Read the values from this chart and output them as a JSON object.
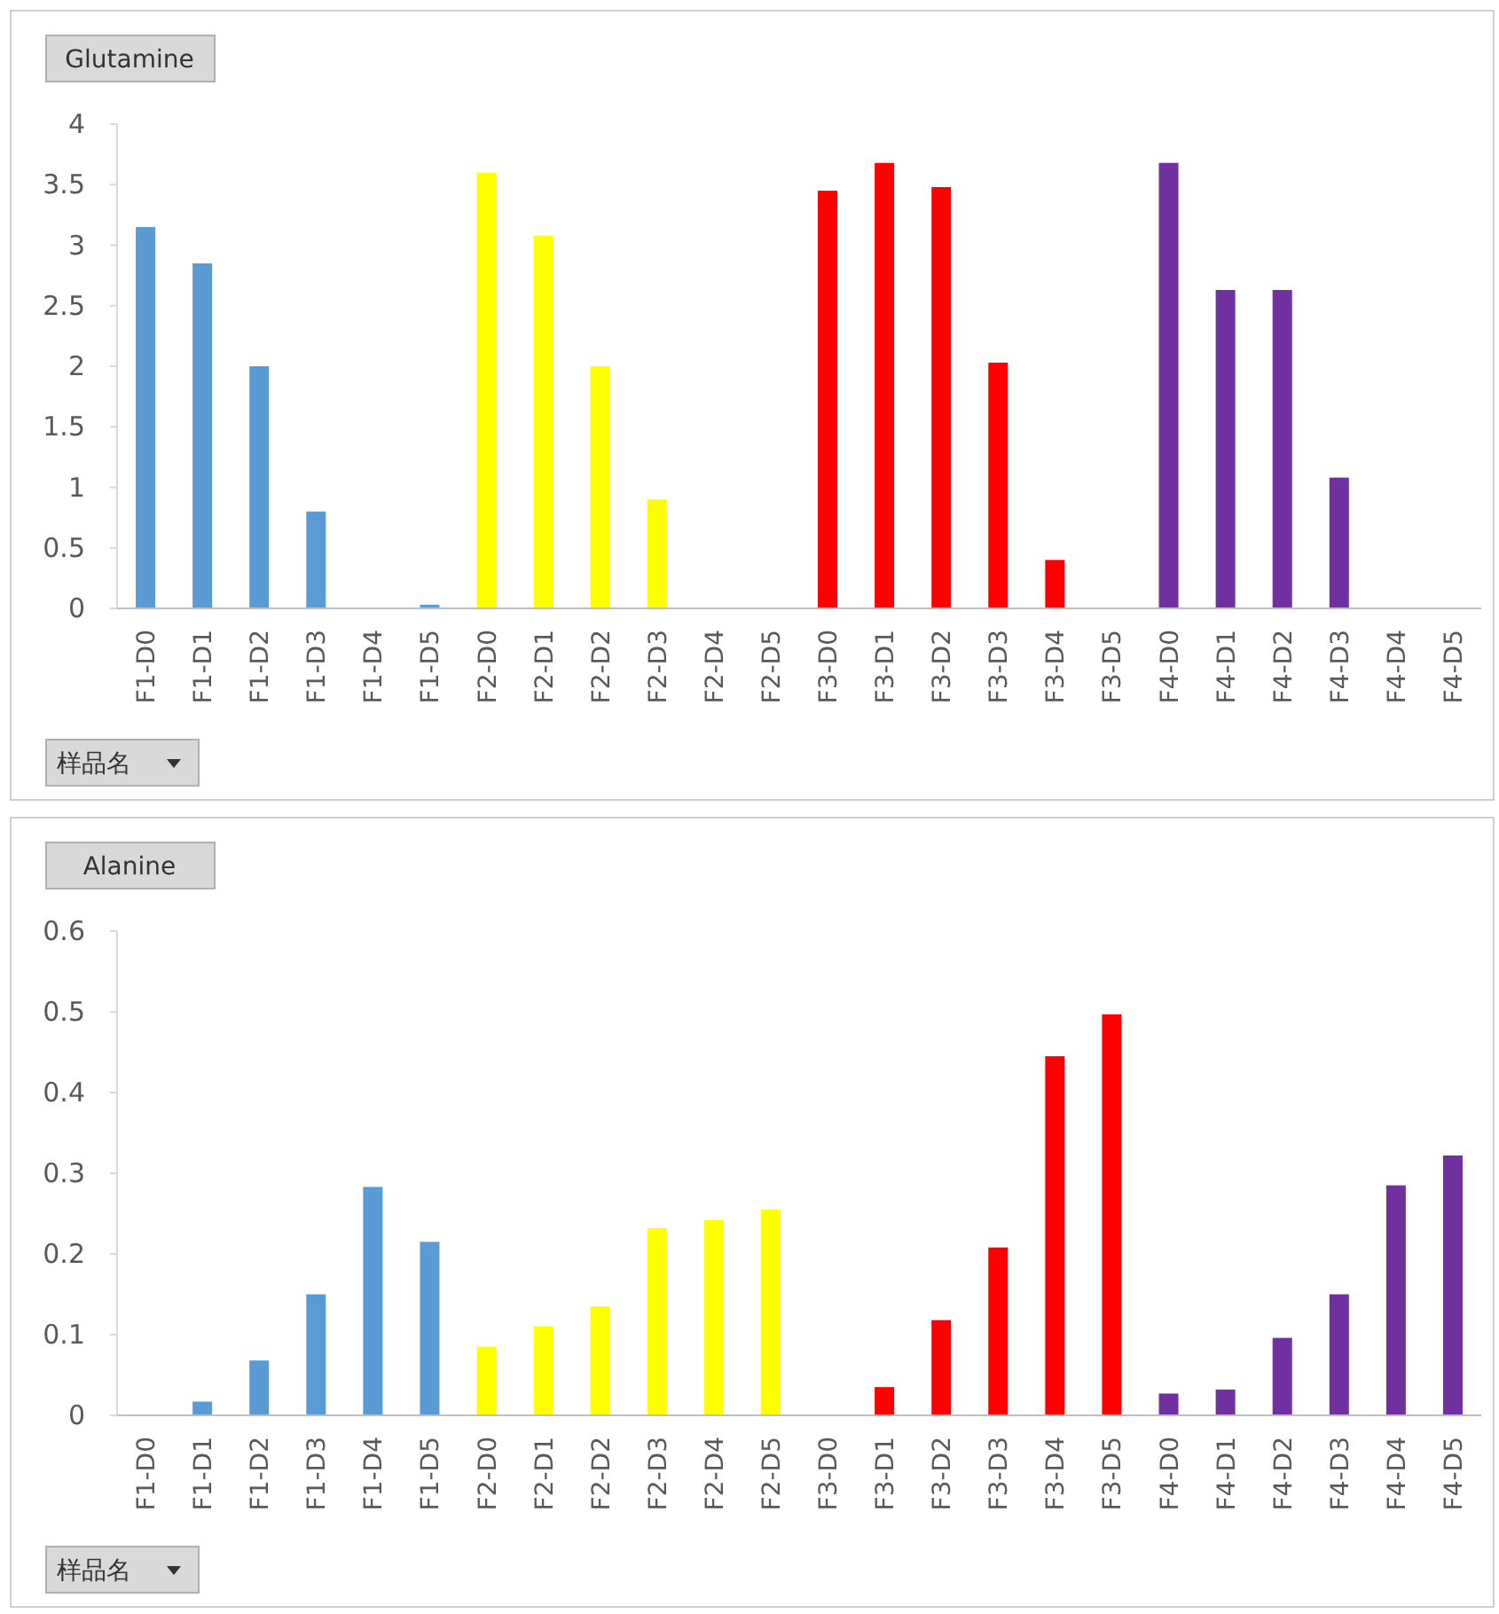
{
  "chart_data": [
    {
      "type": "bar",
      "title": "Glutamine",
      "categories": [
        "F1-D0",
        "F1-D1",
        "F1-D2",
        "F1-D3",
        "F1-D4",
        "F1-D5",
        "F2-D0",
        "F2-D1",
        "F2-D2",
        "F2-D3",
        "F2-D4",
        "F2-D5",
        "F3-D0",
        "F3-D1",
        "F3-D2",
        "F3-D3",
        "F3-D4",
        "F3-D5",
        "F4-D0",
        "F4-D1",
        "F4-D2",
        "F4-D3",
        "F4-D4",
        "F4-D5"
      ],
      "values": [
        3.15,
        2.85,
        2.0,
        0.8,
        0,
        0.03,
        3.6,
        3.08,
        2.0,
        0.9,
        0,
        0,
        3.45,
        3.68,
        3.48,
        2.03,
        0.4,
        0,
        3.68,
        2.63,
        2.63,
        1.08,
        0,
        0
      ],
      "colors": [
        "#5b9bd5",
        "#5b9bd5",
        "#5b9bd5",
        "#5b9bd5",
        "#5b9bd5",
        "#5b9bd5",
        "#ffff00",
        "#ffff00",
        "#ffff00",
        "#ffff00",
        "#ffff00",
        "#ffff00",
        "#ff0000",
        "#ff0000",
        "#ff0000",
        "#ff0000",
        "#ff0000",
        "#ff0000",
        "#7030a0",
        "#7030a0",
        "#7030a0",
        "#7030a0",
        "#7030a0",
        "#7030a0"
      ],
      "ylim": [
        0,
        4
      ],
      "yticks": [
        0,
        0.5,
        1,
        1.5,
        2,
        2.5,
        3,
        3.5,
        4
      ],
      "grid": false,
      "annotations": [
        "样品名"
      ]
    },
    {
      "type": "bar",
      "title": "Alanine",
      "categories": [
        "F1-D0",
        "F1-D1",
        "F1-D2",
        "F1-D3",
        "F1-D4",
        "F1-D5",
        "F2-D0",
        "F2-D1",
        "F2-D2",
        "F2-D3",
        "F2-D4",
        "F2-D5",
        "F3-D0",
        "F3-D1",
        "F3-D2",
        "F3-D3",
        "F3-D4",
        "F3-D5",
        "F4-D0",
        "F4-D1",
        "F4-D2",
        "F4-D3",
        "F4-D4",
        "F4-D5"
      ],
      "values": [
        0,
        0.017,
        0.068,
        0.15,
        0.283,
        0.215,
        0.085,
        0.11,
        0.135,
        0.232,
        0.242,
        0.255,
        0,
        0.035,
        0.118,
        0.208,
        0.445,
        0.497,
        0.027,
        0.032,
        0.096,
        0.15,
        0.285,
        0.322
      ],
      "colors": [
        "#5b9bd5",
        "#5b9bd5",
        "#5b9bd5",
        "#5b9bd5",
        "#5b9bd5",
        "#5b9bd5",
        "#ffff00",
        "#ffff00",
        "#ffff00",
        "#ffff00",
        "#ffff00",
        "#ffff00",
        "#ff0000",
        "#ff0000",
        "#ff0000",
        "#ff0000",
        "#ff0000",
        "#ff0000",
        "#7030a0",
        "#7030a0",
        "#7030a0",
        "#7030a0",
        "#7030a0",
        "#7030a0"
      ],
      "ylim": [
        0,
        0.6
      ],
      "yticks": [
        0,
        0.1,
        0.2,
        0.3,
        0.4,
        0.5,
        0.6
      ],
      "grid": false,
      "annotations": [
        "样品名"
      ]
    }
  ]
}
